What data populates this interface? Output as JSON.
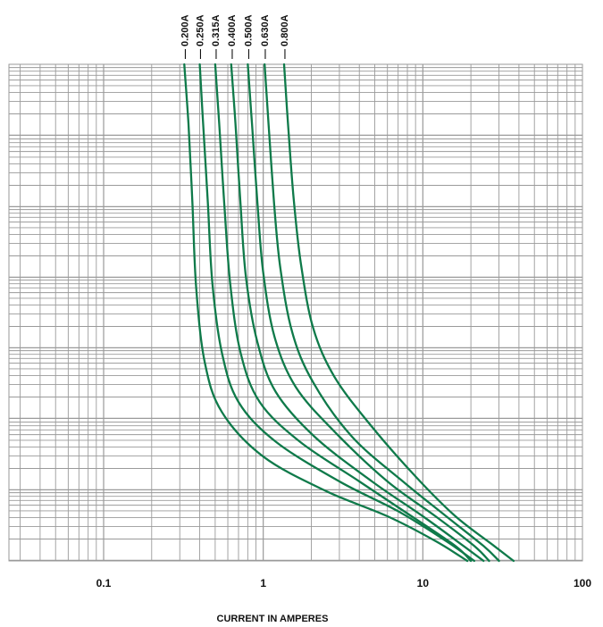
{
  "chart_data": {
    "type": "line",
    "title": "",
    "xlabel": "CURRENT IN AMPERES",
    "ylabel": "",
    "x_scale": "log",
    "xlim": [
      0.025,
      100
    ],
    "x_ticks": [
      "0.1",
      "1",
      "10",
      "100"
    ],
    "grid": true,
    "line_color": "#0f7a4a",
    "grid_color": "#9a9a9a",
    "series": [
      {
        "name": "0.200A",
        "points": [
          [
            0.32,
            1.0
          ],
          [
            0.34,
            0.88
          ],
          [
            0.36,
            0.72
          ],
          [
            0.38,
            0.55
          ],
          [
            0.43,
            0.4
          ],
          [
            0.55,
            0.3
          ],
          [
            1.0,
            0.21
          ],
          [
            2.5,
            0.14
          ],
          [
            6.0,
            0.09
          ],
          [
            12,
            0.04
          ],
          [
            19,
            0.0
          ]
        ]
      },
      {
        "name": "0.250A",
        "points": [
          [
            0.4,
            1.0
          ],
          [
            0.42,
            0.88
          ],
          [
            0.45,
            0.72
          ],
          [
            0.48,
            0.56
          ],
          [
            0.55,
            0.42
          ],
          [
            0.7,
            0.32
          ],
          [
            1.2,
            0.24
          ],
          [
            3.0,
            0.16
          ],
          [
            7.0,
            0.1
          ],
          [
            14,
            0.04
          ],
          [
            21,
            0.0
          ]
        ]
      },
      {
        "name": "0.315A",
        "points": [
          [
            0.5,
            1.0
          ],
          [
            0.53,
            0.88
          ],
          [
            0.57,
            0.72
          ],
          [
            0.62,
            0.56
          ],
          [
            0.72,
            0.42
          ],
          [
            0.95,
            0.32
          ],
          [
            1.7,
            0.24
          ],
          [
            4.0,
            0.16
          ],
          [
            8.5,
            0.09
          ],
          [
            16,
            0.03
          ],
          [
            20,
            0.0
          ]
        ]
      },
      {
        "name": "0.400A",
        "points": [
          [
            0.63,
            1.0
          ],
          [
            0.67,
            0.88
          ],
          [
            0.72,
            0.72
          ],
          [
            0.78,
            0.57
          ],
          [
            0.92,
            0.44
          ],
          [
            1.2,
            0.34
          ],
          [
            2.1,
            0.25
          ],
          [
            4.8,
            0.16
          ],
          [
            10,
            0.09
          ],
          [
            18,
            0.03
          ],
          [
            24,
            0.0
          ]
        ]
      },
      {
        "name": "0.500A",
        "points": [
          [
            0.8,
            1.0
          ],
          [
            0.85,
            0.88
          ],
          [
            0.92,
            0.72
          ],
          [
            1.0,
            0.58
          ],
          [
            1.18,
            0.45
          ],
          [
            1.6,
            0.35
          ],
          [
            2.8,
            0.26
          ],
          [
            6.0,
            0.16
          ],
          [
            12,
            0.09
          ],
          [
            21,
            0.03
          ],
          [
            26,
            0.0
          ]
        ]
      },
      {
        "name": "0.630A",
        "points": [
          [
            1.02,
            1.0
          ],
          [
            1.08,
            0.88
          ],
          [
            1.17,
            0.72
          ],
          [
            1.28,
            0.59
          ],
          [
            1.52,
            0.46
          ],
          [
            2.05,
            0.36
          ],
          [
            3.6,
            0.25
          ],
          [
            7.5,
            0.16
          ],
          [
            14,
            0.09
          ],
          [
            24,
            0.03
          ],
          [
            30,
            0.0
          ]
        ]
      },
      {
        "name": "0.800A",
        "points": [
          [
            1.35,
            1.0
          ],
          [
            1.43,
            0.88
          ],
          [
            1.55,
            0.73
          ],
          [
            1.72,
            0.6
          ],
          [
            2.05,
            0.47
          ],
          [
            2.8,
            0.37
          ],
          [
            4.8,
            0.27
          ],
          [
            9.0,
            0.17
          ],
          [
            16,
            0.09
          ],
          [
            28,
            0.03
          ],
          [
            37,
            0.0
          ]
        ]
      }
    ]
  }
}
